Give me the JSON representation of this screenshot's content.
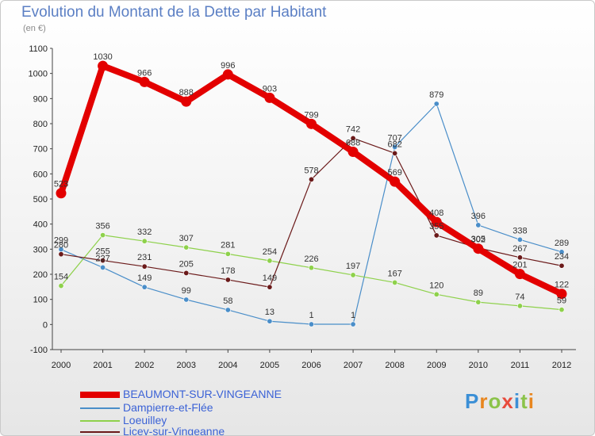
{
  "chart_data": {
    "type": "line",
    "title": "Evolution du Montant de la Dette par Habitant",
    "subtitle": "(en €)",
    "x": [
      "2000",
      "2001",
      "2002",
      "2003",
      "2004",
      "2005",
      "2006",
      "2007",
      "2008",
      "2009",
      "2010",
      "2011",
      "2012"
    ],
    "y_ticks": [
      -100,
      0,
      100,
      200,
      300,
      400,
      500,
      600,
      700,
      800,
      900,
      1000,
      1100
    ],
    "ylim": [
      -100,
      1100
    ],
    "grid": false,
    "legend_position": "bottom-left",
    "series": [
      {
        "name": "BEAUMONT-SUR-VINGEANNE",
        "color": "#e30000",
        "values": [
          523,
          1030,
          966,
          888,
          996,
          903,
          799,
          688,
          569,
          408,
          302,
          201,
          122
        ],
        "labels": [
          "523",
          "1030",
          "966",
          "888",
          "996",
          "903",
          "799",
          "688",
          "569",
          "408",
          "302",
          "201",
          "122"
        ]
      },
      {
        "name": "Dampierre-et-Flée",
        "color": "#4a8ec9",
        "values": [
          299,
          227,
          149,
          99,
          58,
          13,
          1,
          1,
          707,
          879,
          396,
          338,
          289
        ],
        "labels": [
          "299",
          "227",
          "149",
          "99",
          "58",
          "13",
          "1",
          "1",
          "707",
          "879",
          "396",
          "338",
          "289"
        ]
      },
      {
        "name": "Loeuilley",
        "color": "#8ed14b",
        "values": [
          154,
          356,
          332,
          307,
          281,
          254,
          226,
          197,
          167,
          120,
          89,
          74,
          59
        ],
        "labels": [
          "154",
          "356",
          "332",
          "307",
          "281",
          "254",
          "226",
          "197",
          "167",
          "120",
          "89",
          "74",
          "59"
        ]
      },
      {
        "name": "Licey-sur-Vingeanne",
        "color": "#6b1a1a",
        "values": [
          280,
          255,
          231,
          205,
          178,
          149,
          578,
          742,
          682,
          355,
          305,
          267,
          234
        ],
        "labels": [
          "280",
          "255",
          "231",
          "205",
          "178",
          "149",
          "578",
          "742",
          "682",
          "355",
          "305",
          "267",
          "234"
        ]
      }
    ]
  },
  "logo": {
    "letters": [
      "P",
      "r",
      "o",
      "x",
      "i",
      "t",
      "i"
    ],
    "colors": [
      "#3b8fd6",
      "#e8861f",
      "#8bc34a",
      "#e84b3c",
      "#3b8fd6",
      "#8bc34a",
      "#e8861f"
    ]
  }
}
